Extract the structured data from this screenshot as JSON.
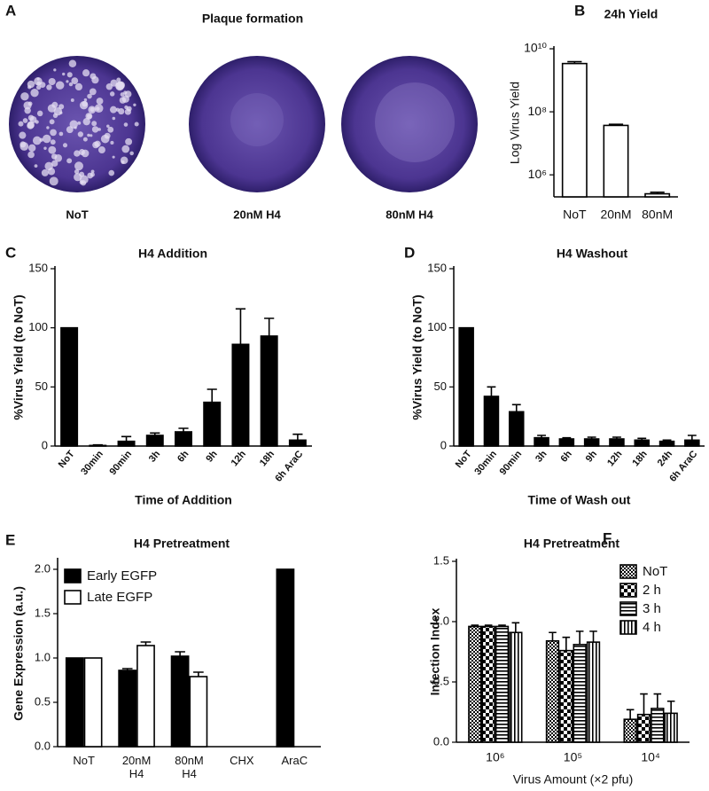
{
  "figure_a": {
    "panel": "A",
    "title": "Plaque formation",
    "plates": [
      "NoT",
      "20nM H4",
      "80nM H4"
    ]
  },
  "chart_data": [
    {
      "panel": "B",
      "type": "bar",
      "title": "24h Yield",
      "ylabel": "Log Virus Yield",
      "categories": [
        "NoT",
        "20nM",
        "80nM"
      ],
      "values": [
        3400000000,
        37000000,
        250000
      ],
      "errors": [
        500000000,
        3000000,
        30000
      ],
      "color": "#ffffff",
      "edgecolor": "#000000",
      "log_y": true,
      "ylim": [
        200000,
        10000000000
      ],
      "yticks": [
        {
          "value": 1000000,
          "label": "10⁶"
        },
        {
          "value": 100000000,
          "label": "10⁸"
        },
        {
          "value": 10000000000,
          "label": "10¹⁰"
        }
      ]
    },
    {
      "panel": "C",
      "type": "bar",
      "title": "H4 Addition",
      "xlabel": "Time of Addition",
      "ylabel": "%Virus Yield (to NoT)",
      "categories": [
        "NoT",
        "30min",
        "90min",
        "3h",
        "6h",
        "9h",
        "12h",
        "18h",
        "6h AraC"
      ],
      "values": [
        100,
        0.5,
        4,
        9,
        12,
        37,
        86,
        93,
        5
      ],
      "errors": [
        0,
        0.5,
        4,
        2,
        3,
        11,
        30,
        15,
        5
      ],
      "color": "#000000",
      "edgecolor": "#000000",
      "ylim": [
        0,
        150
      ],
      "yticks": [
        0,
        50,
        100,
        150
      ]
    },
    {
      "panel": "D",
      "type": "bar",
      "title": "H4 Washout",
      "xlabel": "Time of Wash out",
      "ylabel": "%Virus Yield (to NoT)",
      "categories": [
        "NoT",
        "30min",
        "90min",
        "3h",
        "6h",
        "9h",
        "12h",
        "18h",
        "24h",
        "6h AraC"
      ],
      "values": [
        100,
        42,
        29,
        7,
        6,
        6,
        6,
        5,
        4,
        5
      ],
      "errors": [
        0,
        8,
        6,
        2,
        1,
        1.5,
        1.5,
        1.5,
        1,
        4
      ],
      "color": "#000000",
      "edgecolor": "#000000",
      "ylim": [
        0,
        150
      ],
      "yticks": [
        0,
        50,
        100,
        150
      ]
    },
    {
      "panel": "E",
      "type": "bar",
      "title": "H4 Pretreatment",
      "ylabel": "Gene Expression (a.u.)",
      "categories": [
        "NoT",
        "20nM H4",
        "80nM H4",
        "CHX",
        "AraC"
      ],
      "series": [
        {
          "name": "Early EGFP",
          "color": "#000000",
          "values": [
            1.0,
            0.86,
            1.02,
            0.0,
            2.0
          ],
          "errors": [
            0,
            0.02,
            0.05,
            0,
            0
          ]
        },
        {
          "name": "Late EGFP",
          "color": "#ffffff",
          "values": [
            1.0,
            1.14,
            0.79,
            0.0,
            0.0
          ],
          "errors": [
            0,
            0.04,
            0.05,
            0,
            0
          ]
        }
      ],
      "edgecolor": "#000000",
      "legend": "upper left",
      "ylim": [
        0,
        2.1
      ],
      "yticks": [
        {
          "value": 0,
          "label": "0.0"
        },
        {
          "value": 0.5,
          "label": "0.5"
        },
        {
          "value": 1,
          "label": "1.0"
        },
        {
          "value": 1.5,
          "label": "1.5"
        },
        {
          "value": 2,
          "label": "2.0"
        }
      ]
    },
    {
      "panel": "F",
      "type": "bar",
      "title": "H4 Pretreatment",
      "xlabel": "Virus Amount (×2 pfu)",
      "ylabel": "Infection Index",
      "categories": [
        "10⁶",
        "10⁵",
        "10⁴"
      ],
      "series": [
        {
          "name": "NoT",
          "color": "#000000",
          "pattern": "checker-small",
          "values": [
            0.96,
            0.84,
            0.19
          ],
          "errors": [
            0.01,
            0.07,
            0.08
          ]
        },
        {
          "name": "2 h",
          "color": "#000000",
          "pattern": "checker-large",
          "values": [
            0.96,
            0.76,
            0.23
          ],
          "errors": [
            0.01,
            0.11,
            0.17
          ]
        },
        {
          "name": "3 h",
          "color": "#000000",
          "pattern": "horizontal",
          "values": [
            0.96,
            0.81,
            0.28
          ],
          "errors": [
            0.01,
            0.11,
            0.12
          ]
        },
        {
          "name": "4 h",
          "color": "#000000",
          "pattern": "vertical",
          "values": [
            0.91,
            0.83,
            0.24
          ],
          "errors": [
            0.08,
            0.09,
            0.1
          ]
        }
      ],
      "edgecolor": "#000000",
      "legend": "upper right",
      "ylim": [
        0,
        1.5
      ],
      "yticks": [
        {
          "value": 0,
          "label": "0.0"
        },
        {
          "value": 0.5,
          "label": "0.5"
        },
        {
          "value": 1,
          "label": "1.0"
        },
        {
          "value": 1.5,
          "label": "1.5"
        }
      ]
    }
  ]
}
